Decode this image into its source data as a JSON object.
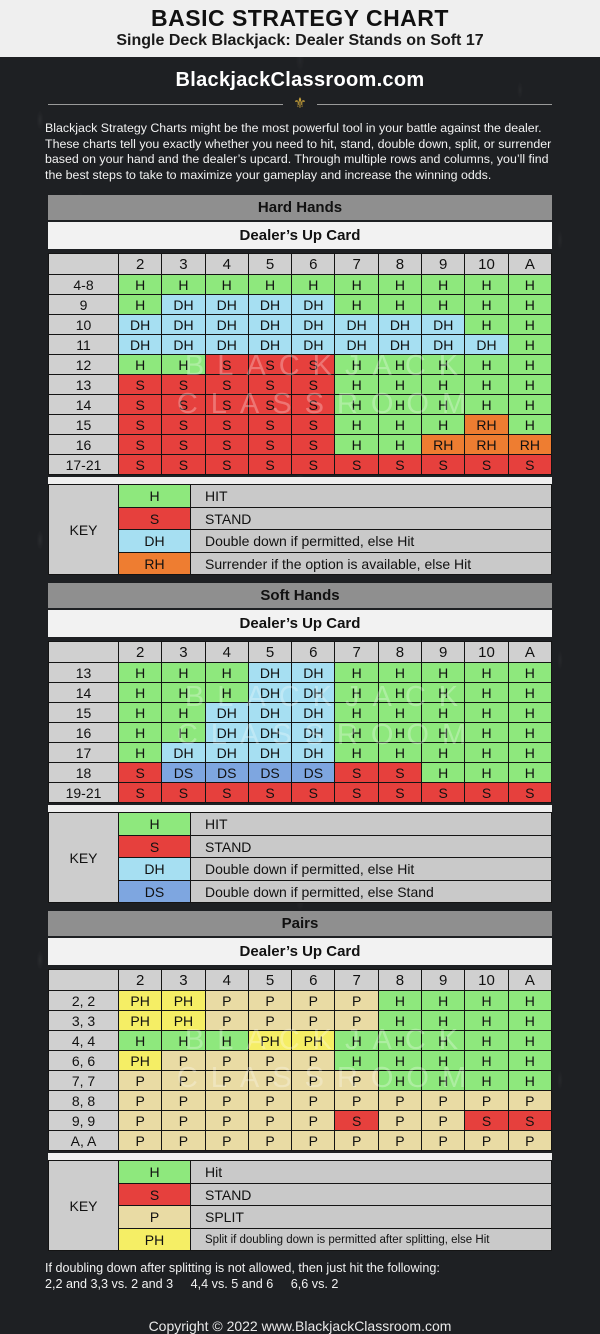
{
  "header": {
    "title": "BASIC STRATEGY CHART",
    "subtitle": "Single Deck Blackjack: Dealer Stands on Soft 17"
  },
  "brand": {
    "name": "BlackjackClassroom.com",
    "icon": "fleur-de-lis",
    "gold_color": "#c9a23a"
  },
  "intro": {
    "text": "Blackjack Strategy Charts might be the most powerful tool in your battle against the dealer. These charts tell you exactly whether you need to hit, stand, double down, split, or surrender based on your hand and the dealer’s upcard. Through multiple rows and columns, you’ll find the best steps to take to maximize your gameplay and increase the winning odds."
  },
  "labels": {
    "dealer_up_card": "Dealer’s Up Card",
    "key": "KEY"
  },
  "watermark": {
    "line1": "BLACKJACK",
    "line2": "CLASSROOM"
  },
  "action_colors": {
    "H": "#8ee87d",
    "S": "#e6403d",
    "DH": "#a6dff2",
    "DS": "#7ea6e0",
    "RH": "#ee7d31",
    "P": "#e9dba4",
    "PH": "#f5ee65"
  },
  "chart_data": [
    {
      "type": "table",
      "title": "Hard Hands",
      "columns": [
        "2",
        "3",
        "4",
        "5",
        "6",
        "7",
        "8",
        "9",
        "10",
        "A"
      ],
      "rows": [
        {
          "label": "4-8",
          "cells": [
            "H",
            "H",
            "H",
            "H",
            "H",
            "H",
            "H",
            "H",
            "H",
            "H"
          ]
        },
        {
          "label": "9",
          "cells": [
            "H",
            "DH",
            "DH",
            "DH",
            "DH",
            "H",
            "H",
            "H",
            "H",
            "H"
          ]
        },
        {
          "label": "10",
          "cells": [
            "DH",
            "DH",
            "DH",
            "DH",
            "DH",
            "DH",
            "DH",
            "DH",
            "H",
            "H"
          ]
        },
        {
          "label": "11",
          "cells": [
            "DH",
            "DH",
            "DH",
            "DH",
            "DH",
            "DH",
            "DH",
            "DH",
            "DH",
            "H"
          ]
        },
        {
          "label": "12",
          "cells": [
            "H",
            "H",
            "S",
            "S",
            "S",
            "H",
            "H",
            "H",
            "H",
            "H"
          ]
        },
        {
          "label": "13",
          "cells": [
            "S",
            "S",
            "S",
            "S",
            "S",
            "H",
            "H",
            "H",
            "H",
            "H"
          ]
        },
        {
          "label": "14",
          "cells": [
            "S",
            "S",
            "S",
            "S",
            "S",
            "H",
            "H",
            "H",
            "H",
            "H"
          ]
        },
        {
          "label": "15",
          "cells": [
            "S",
            "S",
            "S",
            "S",
            "S",
            "H",
            "H",
            "H",
            "RH",
            "H"
          ]
        },
        {
          "label": "16",
          "cells": [
            "S",
            "S",
            "S",
            "S",
            "S",
            "H",
            "H",
            "RH",
            "RH",
            "RH"
          ]
        },
        {
          "label": "17-21",
          "cells": [
            "S",
            "S",
            "S",
            "S",
            "S",
            "S",
            "S",
            "S",
            "S",
            "S"
          ]
        }
      ],
      "key": [
        {
          "code": "H",
          "desc": "HIT"
        },
        {
          "code": "S",
          "desc": "STAND"
        },
        {
          "code": "DH",
          "desc": "Double down if permitted, else Hit"
        },
        {
          "code": "RH",
          "desc": "Surrender if the option is available, else Hit"
        }
      ]
    },
    {
      "type": "table",
      "title": "Soft Hands",
      "columns": [
        "2",
        "3",
        "4",
        "5",
        "6",
        "7",
        "8",
        "9",
        "10",
        "A"
      ],
      "rows": [
        {
          "label": "13",
          "cells": [
            "H",
            "H",
            "H",
            "DH",
            "DH",
            "H",
            "H",
            "H",
            "H",
            "H"
          ]
        },
        {
          "label": "14",
          "cells": [
            "H",
            "H",
            "H",
            "DH",
            "DH",
            "H",
            "H",
            "H",
            "H",
            "H"
          ]
        },
        {
          "label": "15",
          "cells": [
            "H",
            "H",
            "DH",
            "DH",
            "DH",
            "H",
            "H",
            "H",
            "H",
            "H"
          ]
        },
        {
          "label": "16",
          "cells": [
            "H",
            "H",
            "DH",
            "DH",
            "DH",
            "H",
            "H",
            "H",
            "H",
            "H"
          ]
        },
        {
          "label": "17",
          "cells": [
            "H",
            "DH",
            "DH",
            "DH",
            "DH",
            "H",
            "H",
            "H",
            "H",
            "H"
          ]
        },
        {
          "label": "18",
          "cells": [
            "S",
            "DS",
            "DS",
            "DS",
            "DS",
            "S",
            "S",
            "H",
            "H",
            "H"
          ]
        },
        {
          "label": "19-21",
          "cells": [
            "S",
            "S",
            "S",
            "S",
            "S",
            "S",
            "S",
            "S",
            "S",
            "S"
          ]
        }
      ],
      "key": [
        {
          "code": "H",
          "desc": "HIT"
        },
        {
          "code": "S",
          "desc": "STAND"
        },
        {
          "code": "DH",
          "desc": "Double down if permitted, else Hit"
        },
        {
          "code": "DS",
          "desc": "Double down if permitted, else Stand"
        }
      ]
    },
    {
      "type": "table",
      "title": "Pairs",
      "columns": [
        "2",
        "3",
        "4",
        "5",
        "6",
        "7",
        "8",
        "9",
        "10",
        "A"
      ],
      "rows": [
        {
          "label": "2, 2",
          "cells": [
            "PH",
            "PH",
            "P",
            "P",
            "P",
            "P",
            "H",
            "H",
            "H",
            "H"
          ]
        },
        {
          "label": "3, 3",
          "cells": [
            "PH",
            "PH",
            "P",
            "P",
            "P",
            "P",
            "H",
            "H",
            "H",
            "H"
          ]
        },
        {
          "label": "4, 4",
          "cells": [
            "H",
            "H",
            "H",
            "PH",
            "PH",
            "H",
            "H",
            "H",
            "H",
            "H"
          ]
        },
        {
          "label": "6, 6",
          "cells": [
            "PH",
            "P",
            "P",
            "P",
            "P",
            "H",
            "H",
            "H",
            "H",
            "H"
          ]
        },
        {
          "label": "7, 7",
          "cells": [
            "P",
            "P",
            "P",
            "P",
            "P",
            "P",
            "H",
            "H",
            "H",
            "H"
          ]
        },
        {
          "label": "8, 8",
          "cells": [
            "P",
            "P",
            "P",
            "P",
            "P",
            "P",
            "P",
            "P",
            "P",
            "P"
          ]
        },
        {
          "label": "9, 9",
          "cells": [
            "P",
            "P",
            "P",
            "P",
            "P",
            "S",
            "P",
            "P",
            "S",
            "S"
          ]
        },
        {
          "label": "A, A",
          "cells": [
            "P",
            "P",
            "P",
            "P",
            "P",
            "P",
            "P",
            "P",
            "P",
            "P"
          ]
        }
      ],
      "key": [
        {
          "code": "H",
          "desc": "Hit"
        },
        {
          "code": "S",
          "desc": "STAND"
        },
        {
          "code": "P",
          "desc": "SPLIT"
        },
        {
          "code": "PH",
          "desc": "Split if doubling down is permitted after splitting, else Hit"
        }
      ]
    }
  ],
  "note": {
    "line1": "If doubling down after splitting is not allowed, then just hit the following:",
    "segments": [
      "2,2 and 3,3 vs. 2 and 3",
      "4,4 vs. 5 and 6",
      "6,6 vs. 2"
    ]
  },
  "footer": {
    "text": "Copyright © 2022 www.BlackjackClassroom.com"
  }
}
